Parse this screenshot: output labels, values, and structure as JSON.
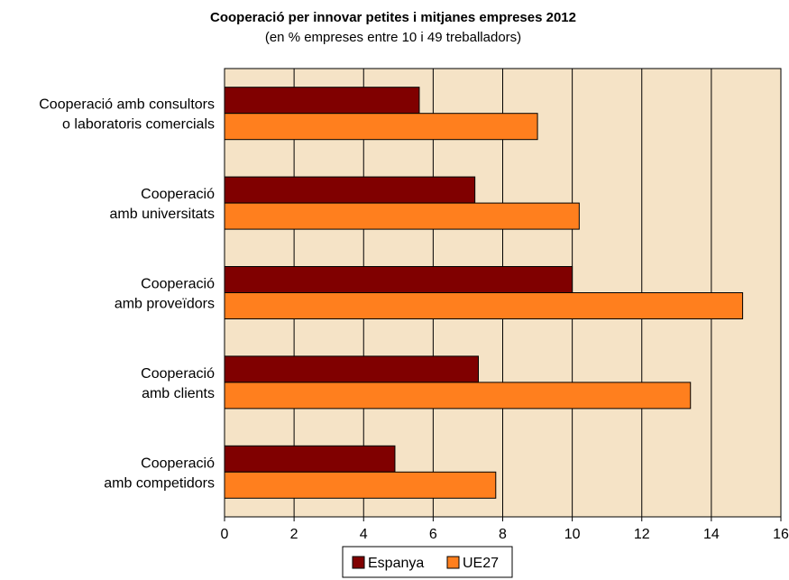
{
  "chart_data": {
    "type": "bar",
    "orientation": "horizontal",
    "title": "Cooperació per innovar petites i mitjanes empreses 2012",
    "subtitle": "(en % empreses entre 10 i 49 treballadors)",
    "categories": [
      [
        "Cooperació amb consultors",
        "o laboratoris comercials"
      ],
      [
        "Cooperació",
        "amb universitats"
      ],
      [
        "Cooperació",
        "amb proveïdors"
      ],
      [
        "Cooperació",
        "amb clients"
      ],
      [
        "Cooperació",
        "amb competidors"
      ]
    ],
    "series": [
      {
        "name": "Espanya",
        "color": "#800000",
        "values": [
          5.6,
          7.2,
          10.0,
          7.3,
          4.9
        ]
      },
      {
        "name": "UE27",
        "color": "#FF7F1E",
        "values": [
          9.0,
          10.2,
          14.9,
          13.4,
          7.8
        ]
      }
    ],
    "xlim": [
      0,
      16
    ],
    "xticks": [
      "0",
      "2",
      "4",
      "6",
      "8",
      "10",
      "12",
      "14",
      "16"
    ],
    "grid": true,
    "plot_background": "#F5E3C6",
    "legend_position": "bottom"
  }
}
